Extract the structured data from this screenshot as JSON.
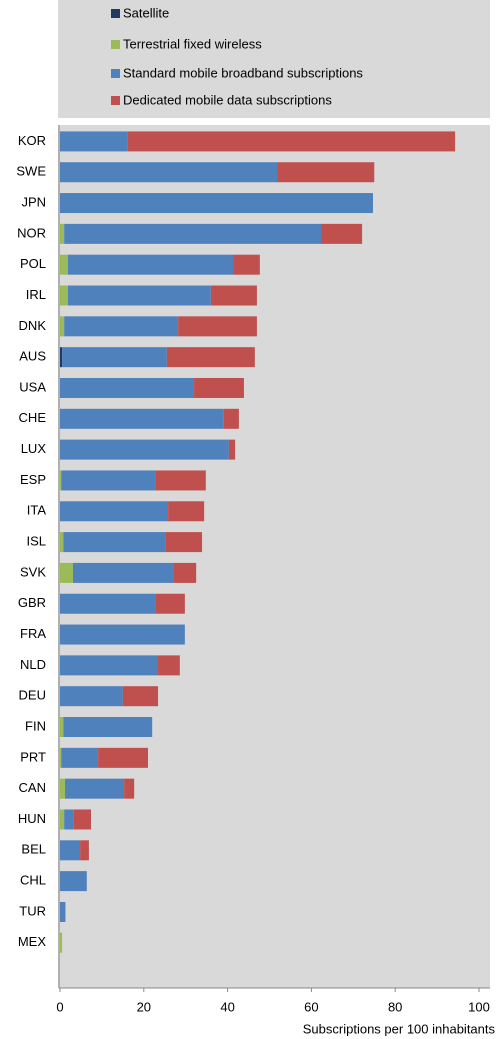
{
  "chart_data": {
    "type": "stacked-bar-horizontal",
    "categories": [
      "KOR",
      "SWE",
      "JPN",
      "NOR",
      "POL",
      "IRL",
      "DNK",
      "AUS",
      "USA",
      "CHE",
      "LUX",
      "ESP",
      "ITA",
      "ISL",
      "SVK",
      "GBR",
      "FRA",
      "NLD",
      "DEU",
      "FIN",
      "PRT",
      "CAN",
      "HUN",
      "BEL",
      "CHL",
      "TUR",
      "MEX"
    ],
    "series": [
      {
        "name": "Satellite",
        "color": "#1f3864",
        "values": [
          0,
          0,
          0,
          0,
          0,
          0,
          0,
          0.5,
          0,
          0,
          0,
          0,
          0,
          0,
          0,
          0,
          0,
          0,
          0,
          0,
          0,
          0,
          0,
          0,
          0,
          0,
          0
        ]
      },
      {
        "name": "Terrestrial fixed wireless",
        "color": "#9bbb59",
        "values": [
          0,
          0,
          0,
          1,
          1.9,
          1.9,
          1,
          0,
          0,
          0,
          0,
          0.3,
          0,
          0.8,
          3.1,
          0,
          0,
          0,
          0,
          0.8,
          0.3,
          1.2,
          1,
          0,
          0,
          0,
          0.5
        ]
      },
      {
        "name": "Standard mobile broadband subscriptions",
        "color": "#4f81bd",
        "values": [
          16.2,
          51.8,
          74.7,
          61.3,
          39.4,
          34.1,
          27.2,
          25,
          32,
          39.1,
          40.3,
          22.6,
          25.8,
          24.3,
          23.9,
          22.9,
          29.8,
          23.4,
          15,
          21.2,
          8.8,
          14.1,
          2.3,
          4.8,
          6.4,
          1.3,
          0
        ]
      },
      {
        "name": "Dedicated mobile data subscriptions",
        "color": "#c0504d",
        "values": [
          78.1,
          23.2,
          0,
          9.8,
          6.4,
          11,
          18.8,
          21,
          11.9,
          3.6,
          1.5,
          11.9,
          8.6,
          8.8,
          5.5,
          6.9,
          0,
          5.2,
          8.4,
          0,
          11.9,
          2.4,
          4.1,
          2.1,
          0,
          0,
          0
        ]
      }
    ],
    "x_label": "Subscriptions per 100 inhabitants",
    "xlim": [
      0,
      100
    ],
    "xticks": [
      0,
      20,
      40,
      60,
      80,
      100
    ],
    "plot_background": "#d9d9d9"
  }
}
